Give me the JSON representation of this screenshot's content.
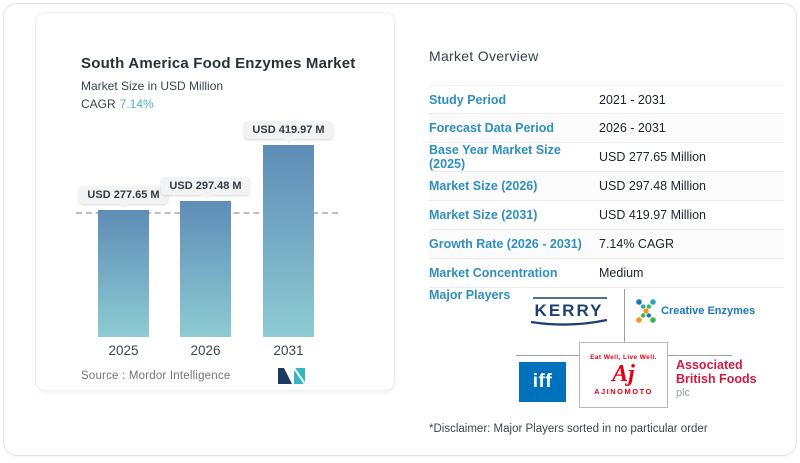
{
  "colors": {
    "accent_blue": "#2e8fc0",
    "cagr_teal": "#4fb3c6",
    "bar_top": "#5e8cb6",
    "bar_bottom": "#8ecbd3",
    "creative_blue": "#1c75bc",
    "iff_blue": "#0072bc",
    "ajinomoto_red": "#e60012",
    "abf_crimson": "#cf1b42",
    "kerry_navy": "#1d3f72",
    "mordor_navy": "#1b3a5f",
    "mordor_teal": "#35b5c2"
  },
  "chart_card": {
    "title": "South America Food Enzymes Market",
    "subtitle": "Market Size in USD Million",
    "cagr_label": "CAGR",
    "cagr_value": "7.14%",
    "source_text": "Source :  Mordor Intelligence"
  },
  "chart_data": {
    "type": "bar",
    "title": "South America Food Enzymes Market",
    "ylabel": "Market Size in USD Million",
    "categories": [
      "2025",
      "2026",
      "2031"
    ],
    "values": [
      277.65,
      297.48,
      419.97
    ],
    "bar_labels": [
      "USD 277.65 M",
      "USD 297.48 M",
      "USD 419.97 M"
    ],
    "cagr": "7.14%",
    "baseline_reference_value": 277.65,
    "grid": "single dashed reference line at 2025 value",
    "legend": "none"
  },
  "overview": {
    "heading": "Market Overview",
    "rows": [
      {
        "label": "Study Period",
        "value": "2021 - 2031"
      },
      {
        "label": "Forecast Data Period",
        "value": "2026 - 2031"
      },
      {
        "label": "Base Year Market Size (2025)",
        "value": "USD 277.65 Million"
      },
      {
        "label": "Market Size (2026)",
        "value": "USD 297.48 Million"
      },
      {
        "label": "Market Size (2031)",
        "value": "USD 419.97 Million"
      },
      {
        "label": "Growth Rate (2026 - 2031)",
        "value": "7.14% CAGR"
      },
      {
        "label": "Market Concentration",
        "value": "Medium"
      }
    ],
    "major_players_label": "Major Players",
    "disclaimer": "*Disclaimer: Major Players sorted in no particular order"
  },
  "logos": {
    "kerry_text": "KERRY",
    "creative_enzymes_text": "Creative Enzymes",
    "iff_text": "iff",
    "ajinomoto_tagline": "Eat Well, Live Well.",
    "ajinomoto_script": "Aj",
    "ajinomoto_word": "AJINOMOTO",
    "abf_line1": "Associated",
    "abf_line2": "British Foods",
    "abf_line3": "plc"
  }
}
